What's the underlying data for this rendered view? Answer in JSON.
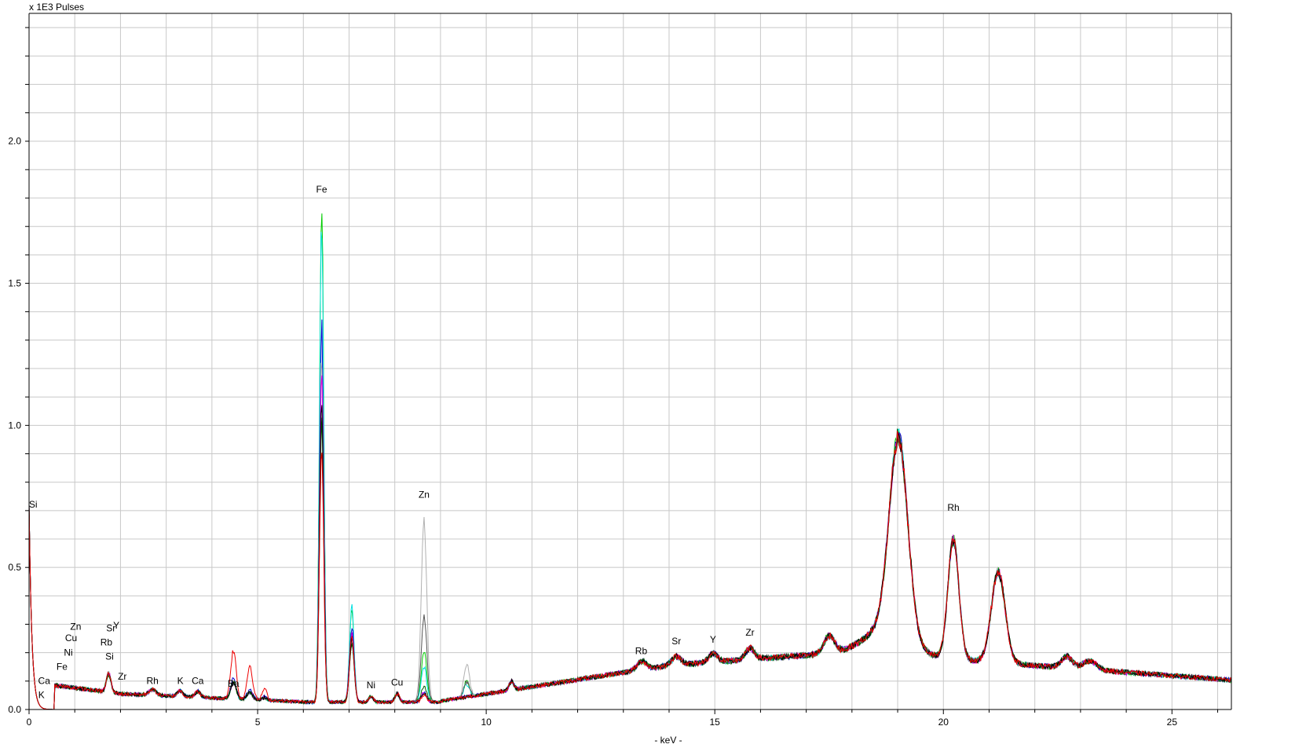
{
  "chart_data": {
    "type": "line",
    "title": "",
    "ylabel": "x 1E3 Pulses",
    "xlabel": "- keV -",
    "xlim": [
      0,
      26.3
    ],
    "ylim": [
      0,
      2.45
    ],
    "grid": true,
    "x_ticks": [
      {
        "value": 0,
        "label": "0"
      },
      {
        "value": 5,
        "label": "5"
      },
      {
        "value": 10,
        "label": "10"
      },
      {
        "value": 15,
        "label": "15"
      },
      {
        "value": 20,
        "label": "20"
      },
      {
        "value": 25,
        "label": "25"
      }
    ],
    "y_ticks": [
      {
        "value": 0.0,
        "label": "0.0"
      },
      {
        "value": 0.5,
        "label": "0.5"
      },
      {
        "value": 1.0,
        "label": "1.0"
      },
      {
        "value": 1.5,
        "label": "1.5"
      },
      {
        "value": 2.0,
        "label": "2.0"
      }
    ],
    "series": [
      {
        "color": "#00cc00",
        "scale": {
          "fe": 1.25,
          "fekb": 1.05,
          "zn": 0.26,
          "zn2": 0.06,
          "ba": 0.2
        }
      },
      {
        "color": "#00e0e0",
        "scale": {
          "fe": 1.18,
          "fekb": 1.12,
          "zn": 0.18,
          "zn2": 0.05,
          "ba": 0.2
        }
      },
      {
        "color": "#0000cc",
        "scale": {
          "fe": 0.93,
          "fekb": 0.88,
          "zn": 0.05,
          "zn2": 0.0,
          "ba": 0.3
        }
      },
      {
        "color": "#b0b0b0",
        "scale": {
          "fe": 0.86,
          "fekb": 0.75,
          "zn": 0.95,
          "zn2": 0.13,
          "ba": 0.2
        }
      },
      {
        "color": "#dd00dd",
        "scale": {
          "fe": 0.8,
          "fekb": 0.8,
          "zn": 0.05,
          "zn2": 0.0,
          "ba": 0.2
        }
      },
      {
        "color": "#555555",
        "scale": {
          "fe": 0.72,
          "fekb": 0.72,
          "zn": 0.45,
          "zn2": 0.06,
          "ba": 0.2
        }
      },
      {
        "color": "#006000",
        "scale": {
          "fe": 0.7,
          "fekb": 0.7,
          "zn": 0.08,
          "zn2": 0.0,
          "ba": 0.2
        }
      },
      {
        "color": "#000000",
        "scale": {
          "fe": 0.75,
          "fekb": 0.75,
          "zn": 0.05,
          "zn2": 0.0,
          "ba": 0.2
        }
      },
      {
        "color": "#ee0000",
        "scale": {
          "fe": 0.64,
          "fekb": 0.78,
          "zn": 0.04,
          "zn2": 0.0,
          "ba": 1.0
        }
      }
    ],
    "annotations": [
      {
        "text": "Si",
        "x": 0.09,
        "y": 0.71
      },
      {
        "text": "Ca",
        "x": 0.33,
        "y": 0.09
      },
      {
        "text": "K",
        "x": 0.27,
        "y": 0.04
      },
      {
        "text": "Fe",
        "x": 0.72,
        "y": 0.14
      },
      {
        "text": "Ni",
        "x": 0.86,
        "y": 0.19
      },
      {
        "text": "Cu",
        "x": 0.92,
        "y": 0.24
      },
      {
        "text": "Zn",
        "x": 1.02,
        "y": 0.28
      },
      {
        "text": "Rb",
        "x": 1.69,
        "y": 0.225
      },
      {
        "text": "Si",
        "x": 1.76,
        "y": 0.175
      },
      {
        "text": "Sr",
        "x": 1.79,
        "y": 0.275
      },
      {
        "text": "Y",
        "x": 1.91,
        "y": 0.285
      },
      {
        "text": "Zr",
        "x": 2.04,
        "y": 0.105
      },
      {
        "text": "Rh",
        "x": 2.7,
        "y": 0.09
      },
      {
        "text": "K",
        "x": 3.31,
        "y": 0.09
      },
      {
        "text": "Ca",
        "x": 3.69,
        "y": 0.09
      },
      {
        "text": "Ba",
        "x": 4.47,
        "y": 0.08
      },
      {
        "text": "Fe",
        "x": 6.4,
        "y": 1.82
      },
      {
        "text": "Ni",
        "x": 7.48,
        "y": 0.075
      },
      {
        "text": "Cu",
        "x": 8.05,
        "y": 0.085
      },
      {
        "text": "Zn",
        "x": 8.64,
        "y": 0.745
      },
      {
        "text": "Rb",
        "x": 13.39,
        "y": 0.195
      },
      {
        "text": "Sr",
        "x": 14.16,
        "y": 0.23
      },
      {
        "text": "Y",
        "x": 14.96,
        "y": 0.235
      },
      {
        "text": "Zr",
        "x": 15.77,
        "y": 0.26
      },
      {
        "text": "Rh",
        "x": 20.22,
        "y": 0.7
      }
    ]
  }
}
